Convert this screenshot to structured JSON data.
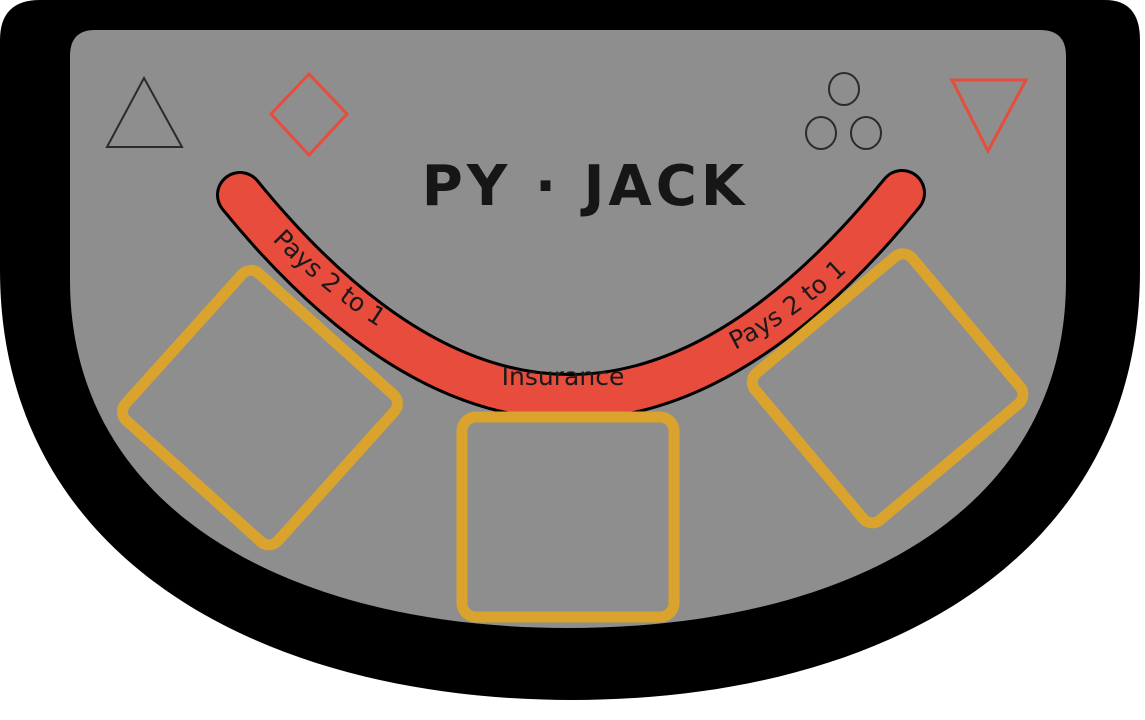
{
  "table": {
    "title": "PY · JACK",
    "insurance": {
      "label": "Insurance",
      "left_payout": "Pays 2 to 1",
      "right_payout": "Pays 2 to 1"
    },
    "suit_icons": [
      "triangle-up-icon",
      "diamond-icon",
      "three-circles-icon",
      "triangle-down-icon"
    ],
    "bet_spots": [
      "left",
      "center",
      "right"
    ]
  },
  "colors": {
    "rail": "#000000",
    "felt": "#8e8e8e",
    "insurance_band": "#e74c3c",
    "bet_spot_outline": "#d9a32e",
    "icon_red": "#e74c3c",
    "icon_dark": "#2b2b2b"
  }
}
